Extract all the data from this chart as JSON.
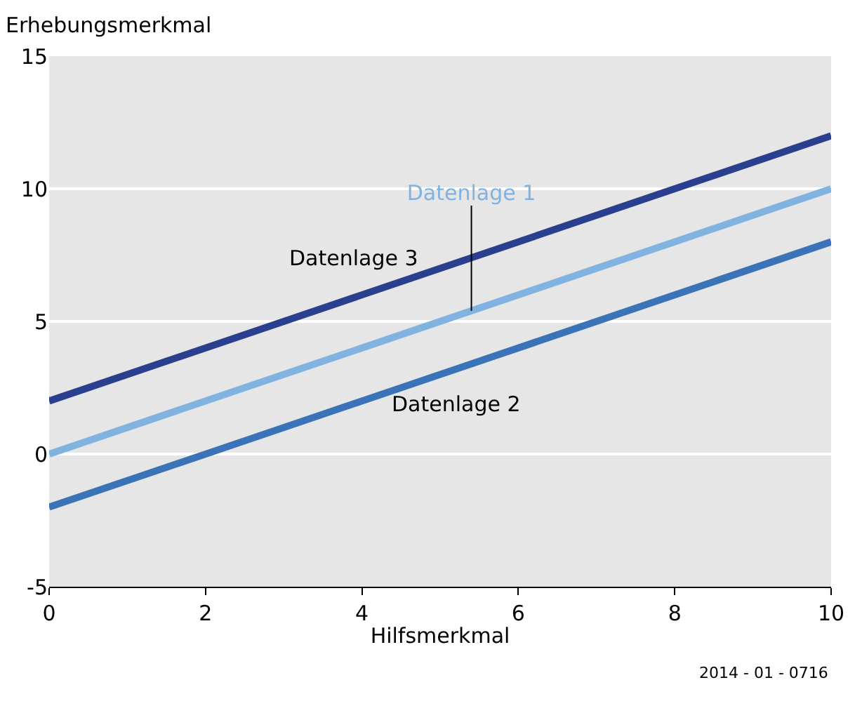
{
  "chart_data": {
    "type": "line",
    "xlabel": "Hilfsmerkmal",
    "ylabel": "Erhebungsmerkmal",
    "x": [
      0,
      10
    ],
    "series": [
      {
        "name": "Datenlage 3",
        "color": "#2b3f8f",
        "values": [
          2,
          12
        ]
      },
      {
        "name": "Datenlage 1",
        "color": "#80b3e0",
        "values": [
          0,
          10
        ]
      },
      {
        "name": "Datenlage 2",
        "color": "#3a73b8",
        "values": [
          -2,
          8
        ]
      }
    ],
    "xlim": [
      0,
      10
    ],
    "xticks": [
      0,
      2,
      4,
      6,
      8,
      10
    ],
    "ylim": [
      -5,
      15
    ],
    "yticks": [
      -5,
      0,
      5,
      10,
      15
    ],
    "grid": "y",
    "legend": false,
    "marker": "none",
    "line_style": "solid",
    "annotations": [
      "2014 - 01 - 0716"
    ]
  }
}
